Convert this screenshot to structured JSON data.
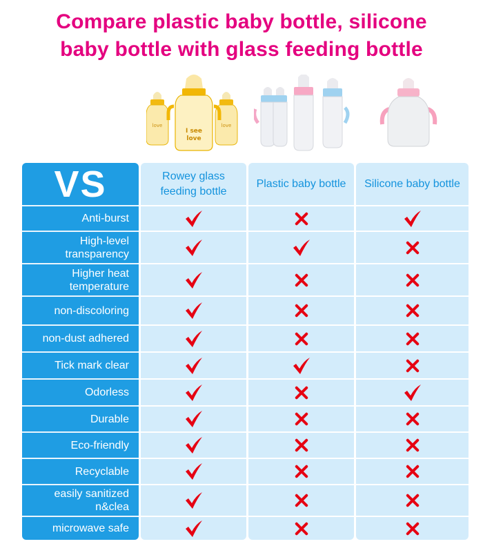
{
  "title": {
    "line1": "Compare plastic baby bottle, silicone",
    "line2": "baby bottle with glass feeding bottle"
  },
  "colors": {
    "title": "#e4007f",
    "label_column": "#1f9de3",
    "value_columns": "#d3ecfb",
    "header_text": "#1493dd",
    "mark": "#e60012"
  },
  "images": {
    "glass_bottles_logo_text": "I see love",
    "icons": [
      "check-icon",
      "cross-icon"
    ]
  },
  "table": {
    "corner": "VS",
    "columns": [
      "Rowey glass feeding bottle",
      "Plastic baby bottle",
      "Silicone baby bottle"
    ],
    "rows": [
      {
        "label": "Anti-burst",
        "values": [
          "check",
          "cross",
          "check"
        ]
      },
      {
        "label": "High-level transparency",
        "values": [
          "check",
          "check",
          "cross"
        ]
      },
      {
        "label": "Higher heat temperature",
        "values": [
          "check",
          "cross",
          "cross"
        ]
      },
      {
        "label": "non-discoloring",
        "values": [
          "check",
          "cross",
          "cross"
        ]
      },
      {
        "label": "non-dust adhered",
        "values": [
          "check",
          "cross",
          "cross"
        ]
      },
      {
        "label": "Tick mark clear",
        "values": [
          "check",
          "check",
          "cross"
        ]
      },
      {
        "label": "Odorless",
        "values": [
          "check",
          "cross",
          "check"
        ]
      },
      {
        "label": "Durable",
        "values": [
          "check",
          "cross",
          "cross"
        ]
      },
      {
        "label": "Eco-friendly",
        "values": [
          "check",
          "cross",
          "cross"
        ]
      },
      {
        "label": "Recyclable",
        "values": [
          "check",
          "cross",
          "cross"
        ]
      },
      {
        "label": "easily sanitized n&clea",
        "values": [
          "check",
          "cross",
          "cross"
        ]
      },
      {
        "label": "microwave safe",
        "values": [
          "check",
          "cross",
          "cross"
        ]
      }
    ]
  }
}
